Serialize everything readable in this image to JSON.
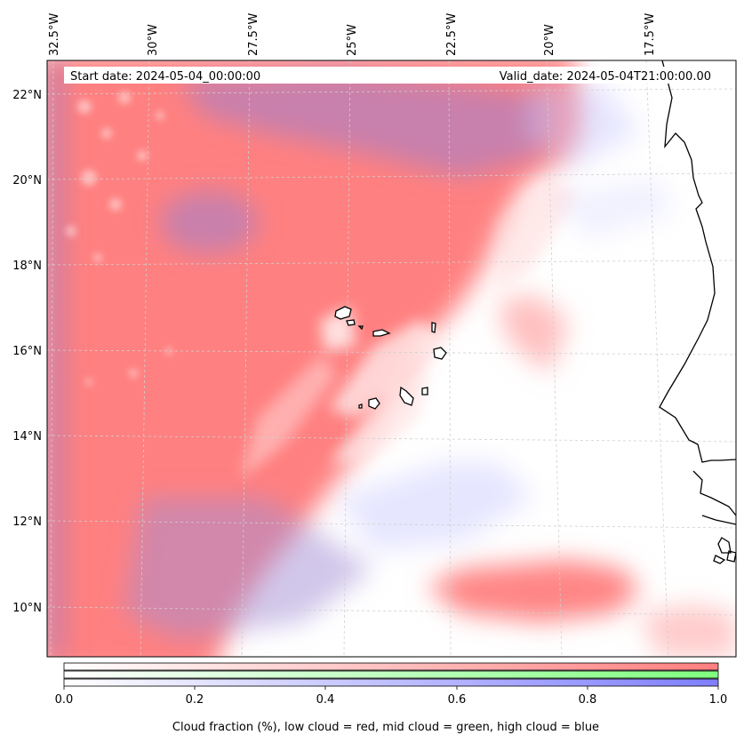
{
  "header": {
    "start_label": "Start date: 2024-05-04_00:00:00",
    "valid_label": "Valid_date: 2024-05-04T21:00:00.00"
  },
  "map": {
    "longitude_labels": [
      "32.5°W",
      "30°W",
      "27.5°W",
      "25°W",
      "22.5°W",
      "20°W",
      "17.5°W"
    ],
    "latitude_labels": [
      "22°N",
      "20°N",
      "18°N",
      "16°N",
      "14°N",
      "12°N",
      "10°N"
    ],
    "coastline_color": "#000000",
    "gridline_color": "#cfcfcf"
  },
  "colorbar": {
    "ticks": [
      "0.0",
      "0.2",
      "0.4",
      "0.6",
      "0.8",
      "1.0"
    ],
    "label": "Cloud fraction (%), low cloud = red, mid cloud = green, high cloud = blue",
    "low_color": "#ff7f7f",
    "mid_color": "#7fff7f",
    "high_color": "#7f7fff"
  }
}
